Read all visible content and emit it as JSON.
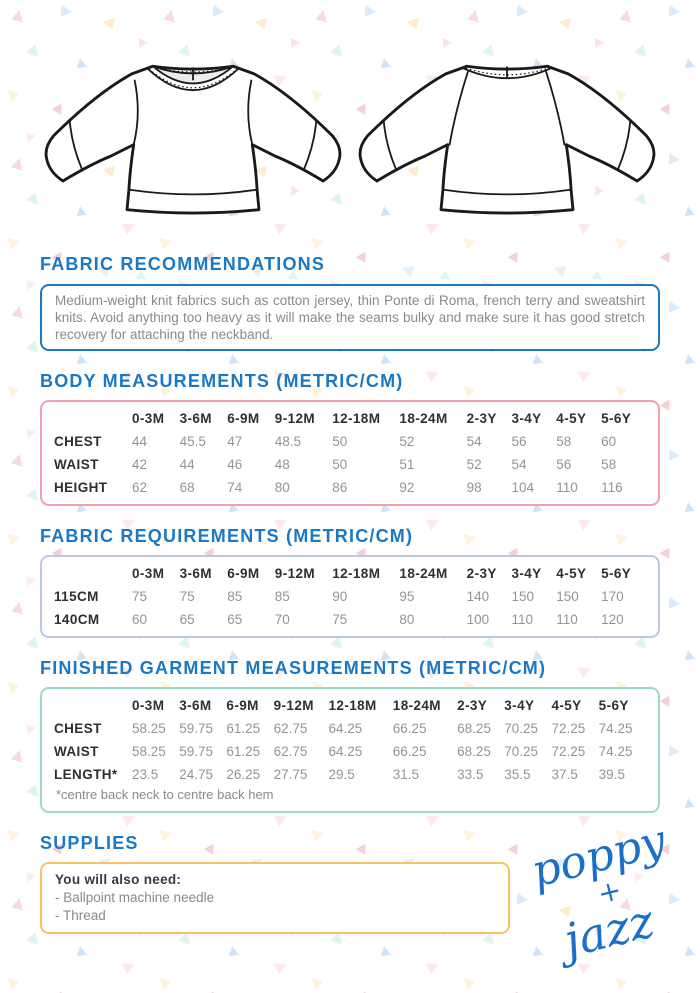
{
  "sections": {
    "fabric_recommendations": {
      "heading": "FABRIC RECOMMENDATIONS",
      "body": "Medium-weight knit fabrics such as cotton jersey, thin Ponte di Roma, french terry and sweatshirt knits. Avoid anything too heavy as it will make the seams bulky and make sure it has good stretch recovery for attaching the neckband."
    },
    "body_measurements": {
      "heading": "BODY MEASUREMENTS (METRIC/CM)",
      "columns": [
        "0-3M",
        "3-6M",
        "6-9M",
        "9-12M",
        "12-18M",
        "18-24M",
        "2-3Y",
        "3-4Y",
        "4-5Y",
        "5-6Y"
      ],
      "rows": [
        {
          "label": "CHEST",
          "values": [
            "44",
            "45.5",
            "47",
            "48.5",
            "50",
            "52",
            "54",
            "56",
            "58",
            "60"
          ]
        },
        {
          "label": "WAIST",
          "values": [
            "42",
            "44",
            "46",
            "48",
            "50",
            "51",
            "52",
            "54",
            "56",
            "58"
          ]
        },
        {
          "label": "HEIGHT",
          "values": [
            "62",
            "68",
            "74",
            "80",
            "86",
            "92",
            "98",
            "104",
            "110",
            "116"
          ]
        }
      ]
    },
    "fabric_requirements": {
      "heading": "FABRIC REQUIREMENTS (METRIC/CM)",
      "columns": [
        "0-3M",
        "3-6M",
        "6-9M",
        "9-12M",
        "12-18M",
        "18-24M",
        "2-3Y",
        "3-4Y",
        "4-5Y",
        "5-6Y"
      ],
      "rows": [
        {
          "label": "115CM",
          "values": [
            "75",
            "75",
            "85",
            "85",
            "90",
            "95",
            "140",
            "150",
            "150",
            "170"
          ]
        },
        {
          "label": "140CM",
          "values": [
            "60",
            "65",
            "65",
            "70",
            "75",
            "80",
            "100",
            "110",
            "110",
            "120"
          ]
        }
      ]
    },
    "finished_garment_measurements": {
      "heading": "FINISHED GARMENT MEASUREMENTS (METRIC/CM)",
      "columns": [
        "0-3M",
        "3-6M",
        "6-9M",
        "9-12M",
        "12-18M",
        "18-24M",
        "2-3Y",
        "3-4Y",
        "4-5Y",
        "5-6Y"
      ],
      "rows": [
        {
          "label": "CHEST",
          "values": [
            "58.25",
            "59.75",
            "61.25",
            "62.75",
            "64.25",
            "66.25",
            "68.25",
            "70.25",
            "72.25",
            "74.25"
          ]
        },
        {
          "label": "WAIST",
          "values": [
            "58.25",
            "59.75",
            "61.25",
            "62.75",
            "64.25",
            "66.25",
            "68.25",
            "70.25",
            "72.25",
            "74.25"
          ]
        },
        {
          "label": "LENGTH*",
          "values": [
            "23.5",
            "24.75",
            "26.25",
            "27.75",
            "29.5",
            "31.5",
            "33.5",
            "35.5",
            "37.5",
            "39.5"
          ]
        }
      ],
      "footnote": "*centre back neck to centre back hem"
    },
    "supplies": {
      "heading": "SUPPLIES",
      "intro": "You will also need:",
      "items": [
        "- Ballpoint machine needle",
        "- Thread"
      ]
    }
  },
  "logo": {
    "word1": "poppy",
    "plus": "+",
    "word2": "jazz"
  },
  "colors": {
    "heading_blue": "#1b78c4",
    "note_border": "#1b78c4",
    "body_table_border": "#f4a0ac",
    "fabric_table_border": "#bcc7e9",
    "finished_table_border": "#9ad8d0",
    "supplies_border": "#f4c465",
    "logo_blue": "#1b6fc8"
  }
}
